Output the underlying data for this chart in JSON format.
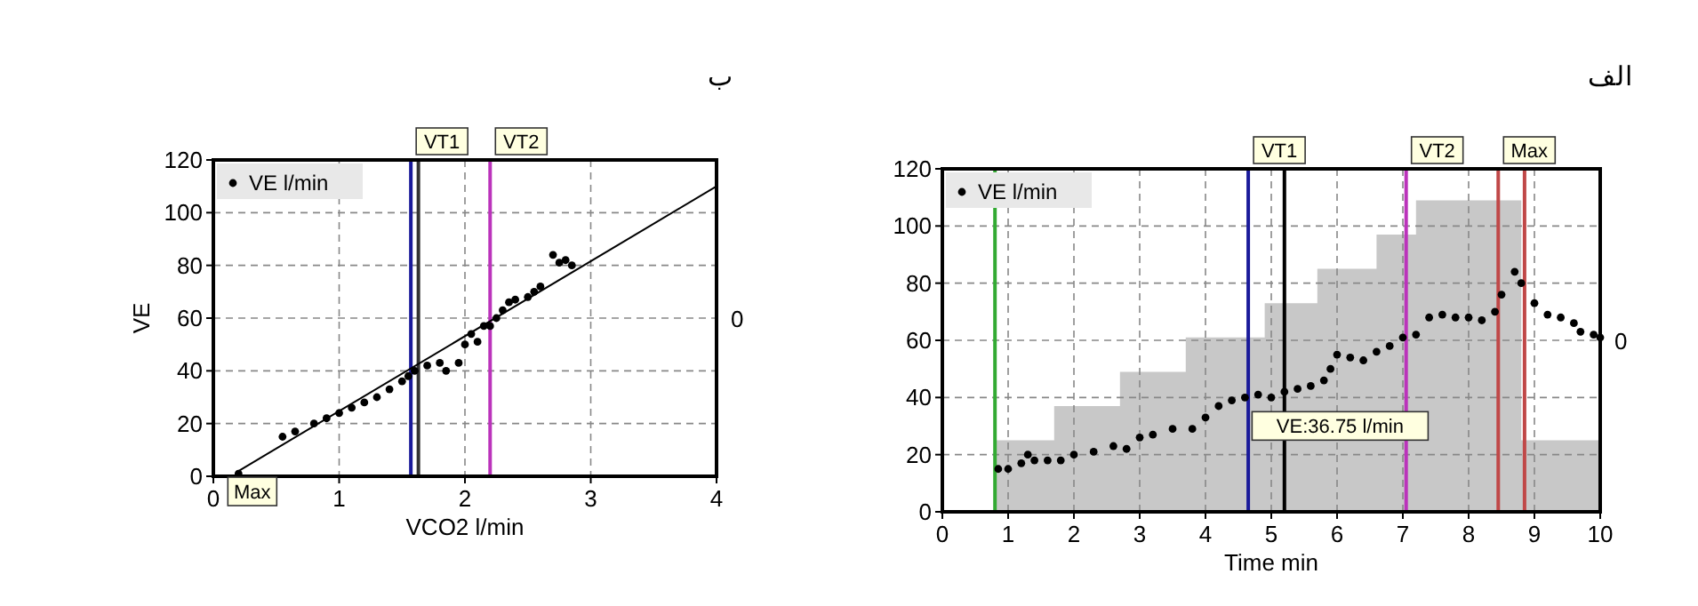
{
  "chart_data": [
    {
      "type": "scatter",
      "title": "الف",
      "xlabel": "Time min",
      "xlim": [
        0,
        10
      ],
      "xticks": [
        0,
        1,
        2,
        3,
        4,
        5,
        6,
        7,
        8,
        9,
        10
      ],
      "ylim": [
        0,
        120
      ],
      "yticks": [
        0,
        20,
        40,
        60,
        80,
        100,
        120
      ],
      "grid": true,
      "legend": "top left",
      "series": [
        {
          "type": "area",
          "color": "#c8c8c8",
          "x": [
            0.8,
            1.7,
            1.7,
            2.7,
            2.7,
            3.7,
            3.7,
            4.9,
            4.9,
            5.7,
            5.7,
            6.6,
            6.6,
            7.2,
            7.2,
            8.8,
            8.8,
            10
          ],
          "values": [
            25,
            25,
            37,
            37,
            49,
            49,
            61,
            61,
            73,
            73,
            85,
            85,
            97,
            97,
            109,
            109,
            25,
            25
          ]
        },
        {
          "name": "VE l/min",
          "color": "#000000",
          "marker": "circle",
          "x": [
            0.85,
            1.0,
            1.2,
            1.3,
            1.4,
            1.6,
            1.8,
            2.0,
            2.3,
            2.6,
            2.8,
            3.0,
            3.2,
            3.5,
            3.8,
            4.0,
            4.2,
            4.4,
            4.6,
            4.8,
            5.0,
            5.2,
            5.4,
            5.6,
            5.8,
            5.9,
            6.0,
            6.2,
            6.4,
            6.6,
            6.8,
            7.0,
            7.2,
            7.4,
            7.6,
            7.8,
            8.0,
            8.2,
            8.4,
            8.5,
            8.7,
            8.8,
            9.0,
            9.2,
            9.4,
            9.6,
            9.7,
            9.9,
            10.0
          ],
          "values": [
            15,
            15,
            17,
            20,
            18,
            18,
            18,
            20,
            21,
            23,
            22,
            26,
            27,
            29,
            29,
            33,
            37,
            39,
            40,
            41,
            40,
            42,
            43,
            44,
            46,
            50,
            55,
            54,
            53,
            56,
            58,
            61,
            62,
            68,
            69,
            68,
            68,
            67,
            70,
            76,
            84,
            80,
            73,
            69,
            68,
            66,
            63,
            62,
            61
          ]
        }
      ],
      "ref_lines": [
        {
          "axis": "x",
          "value": 0.8,
          "color": "#33aa33"
        },
        {
          "axis": "x",
          "value": 4.65,
          "color": "#1a1a9a",
          "label": "VT1"
        },
        {
          "axis": "x",
          "value": 5.2,
          "color": "#000000"
        },
        {
          "axis": "x",
          "value": 7.05,
          "color": "#bb33bb",
          "label": "VT2"
        },
        {
          "axis": "x",
          "value": 8.45,
          "color": "#c04848",
          "label": "Max"
        },
        {
          "axis": "x",
          "value": 8.85,
          "color": "#c04848"
        }
      ],
      "annotations": [
        {
          "text": "VE:36.75 l/min",
          "x": 4.6,
          "y": 40
        },
        "0"
      ]
    },
    {
      "type": "scatter",
      "title": "ب",
      "xlabel": "VCO2 l/min",
      "ylabel": "VE",
      "xlim": [
        0,
        4
      ],
      "xticks": [
        0,
        1,
        2,
        3,
        4
      ],
      "ylim": [
        0,
        120
      ],
      "yticks": [
        0,
        20,
        40,
        60,
        80,
        100,
        120
      ],
      "grid": true,
      "legend": "top left",
      "series": [
        {
          "name": "VE l/min",
          "color": "#000000",
          "marker": "circle",
          "x": [
            0.2,
            0.55,
            0.65,
            0.8,
            0.9,
            1.0,
            1.1,
            1.2,
            1.3,
            1.4,
            1.5,
            1.55,
            1.6,
            1.7,
            1.8,
            1.85,
            1.95,
            2.0,
            2.05,
            2.1,
            2.15,
            2.2,
            2.25,
            2.3,
            2.35,
            2.4,
            2.5,
            2.55,
            2.6,
            2.7,
            2.75,
            2.8,
            2.85
          ],
          "values": [
            1,
            15,
            17,
            20,
            22,
            24,
            26,
            28,
            30,
            33,
            36,
            38,
            40,
            42,
            43,
            40,
            43,
            50,
            54,
            51,
            57,
            57,
            60,
            63,
            66,
            67,
            68,
            70,
            72,
            84,
            81,
            82,
            80
          ]
        },
        {
          "type": "line",
          "color": "#000000",
          "x": [
            0.2,
            4
          ],
          "values": [
            2,
            110
          ]
        }
      ],
      "ref_lines": [
        {
          "axis": "x",
          "value": 1.57,
          "color": "#1a1a9a",
          "label": "VT1"
        },
        {
          "axis": "x",
          "value": 1.63,
          "color": "#333333"
        },
        {
          "axis": "x",
          "value": 2.2,
          "color": "#bb33bb",
          "label": "VT2"
        }
      ],
      "annotations": [
        {
          "text": "Max",
          "x": 0.2,
          "y": 1
        },
        "0"
      ]
    }
  ]
}
